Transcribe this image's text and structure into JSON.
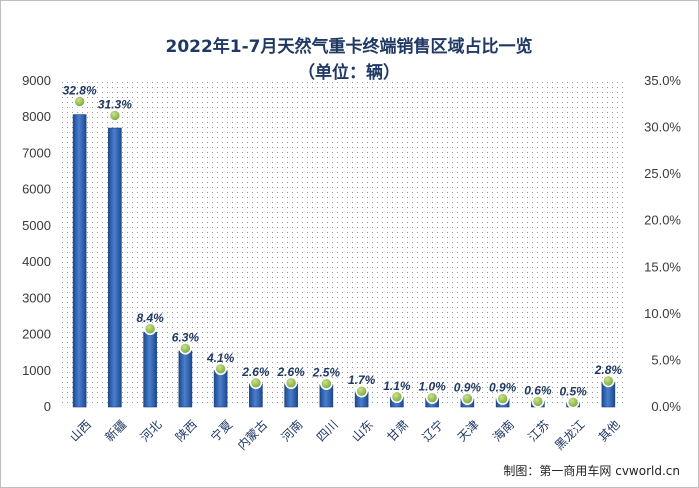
{
  "chart_data": {
    "type": "bar",
    "title": "2022年1-7月天然气重卡终端销售区域占比一览",
    "subtitle": "（单位：辆）",
    "categories": [
      "山西",
      "新疆",
      "河北",
      "陕西",
      "宁夏",
      "内蒙古",
      "河南",
      "四川",
      "山东",
      "甘肃",
      "辽宁",
      "天津",
      "海南",
      "江苏",
      "黑龙江",
      "其他"
    ],
    "series": [
      {
        "values": [
          8072,
          7701,
          2067,
          1550,
          1009,
          640,
          640,
          615,
          418,
          271,
          246,
          221,
          221,
          148,
          123,
          689
        ],
        "axis": "left",
        "color": "#2e5fa8"
      },
      {
        "values": [
          32.8,
          31.3,
          8.4,
          6.3,
          4.1,
          2.6,
          2.6,
          2.5,
          1.7,
          1.1,
          1.0,
          0.9,
          0.9,
          0.6,
          0.5,
          2.8
        ],
        "axis": "right",
        "marker": "circle",
        "color": "#92c04a"
      }
    ],
    "data_labels": [
      "32.8%",
      "31.3%",
      "8.4%",
      "6.3%",
      "4.1%",
      "2.6%",
      "2.6%",
      "2.5%",
      "1.7%",
      "1.1%",
      "1.0%",
      "0.9%",
      "0.9%",
      "0.6%",
      "0.5%",
      "2.8%"
    ],
    "y_left": {
      "ylim": [
        0,
        9000
      ],
      "ticks": [
        0,
        1000,
        2000,
        3000,
        4000,
        5000,
        6000,
        7000,
        8000,
        9000
      ]
    },
    "y_right": {
      "ylim": [
        0,
        35
      ],
      "ticks": [
        "0.0%",
        "5.0%",
        "10.0%",
        "15.0%",
        "20.0%",
        "25.0%",
        "30.0%",
        "35.0%"
      ]
    },
    "grid": "dotted-pattern"
  },
  "credit": "制图：第一商用车网 cvworld.cn"
}
